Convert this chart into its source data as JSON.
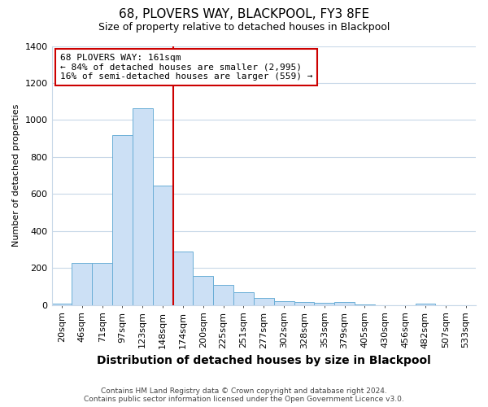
{
  "title": "68, PLOVERS WAY, BLACKPOOL, FY3 8FE",
  "subtitle": "Size of property relative to detached houses in Blackpool",
  "xlabel": "Distribution of detached houses by size in Blackpool",
  "ylabel": "Number of detached properties",
  "footer1": "Contains HM Land Registry data © Crown copyright and database right 2024.",
  "footer2": "Contains public sector information licensed under the Open Government Licence v3.0.",
  "annotation_line1": "68 PLOVERS WAY: 161sqm",
  "annotation_line2": "← 84% of detached houses are smaller (2,995)",
  "annotation_line3": "16% of semi-detached houses are larger (559) →",
  "bar_color": "#cce0f5",
  "bar_edge_color": "#6aaed6",
  "grid_color": "#c8d8e8",
  "bg_color": "#ffffff",
  "ax_bg_color": "#ffffff",
  "red_line_color": "#cc0000",
  "annotation_box_color": "#ffffff",
  "annotation_box_edge": "#cc0000",
  "categories": [
    "20sqm",
    "46sqm",
    "71sqm",
    "97sqm",
    "123sqm",
    "148sqm",
    "174sqm",
    "200sqm",
    "225sqm",
    "251sqm",
    "277sqm",
    "302sqm",
    "328sqm",
    "353sqm",
    "379sqm",
    "405sqm",
    "430sqm",
    "456sqm",
    "482sqm",
    "507sqm",
    "533sqm"
  ],
  "values": [
    10,
    228,
    228,
    920,
    1065,
    648,
    288,
    160,
    108,
    70,
    40,
    22,
    15,
    12,
    18,
    5,
    0,
    0,
    10,
    0,
    0
  ],
  "ylim": [
    0,
    1400
  ],
  "yticks": [
    0,
    200,
    400,
    600,
    800,
    1000,
    1200,
    1400
  ],
  "title_fontsize": 11,
  "subtitle_fontsize": 9,
  "xlabel_fontsize": 10,
  "ylabel_fontsize": 8,
  "tick_fontsize": 8,
  "footer_fontsize": 6.5
}
